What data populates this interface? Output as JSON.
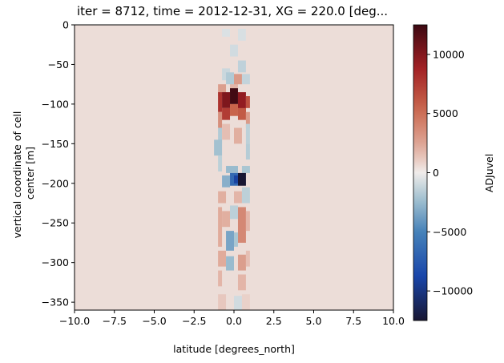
{
  "chart_data": {
    "type": "heatmap",
    "title": "iter = 8712, time = 2012-12-31, XG = 220.0 [deg...",
    "xlabel": "latitude [degrees_north]",
    "ylabel_lines": [
      "vertical coordinate of cell",
      "center [m]"
    ],
    "colorbar_label": "ADJuvel",
    "xlim": [
      -10.0,
      10.0
    ],
    "ylim": [
      -360,
      0
    ],
    "x_ticks": [
      "-10.0",
      "-7.5",
      "-5.0",
      "-2.5",
      "0.0",
      "2.5",
      "5.0",
      "7.5",
      "10.0"
    ],
    "y_ticks": [
      "0",
      "-50",
      "-100",
      "-150",
      "-200",
      "-250",
      "-300",
      "-350"
    ],
    "colorbar_range": [
      -12500,
      12500
    ],
    "colorbar_ticks": [
      "10000",
      "5000",
      "0",
      "-5000",
      "-10000"
    ],
    "colormap": "balance (navy-blue-white-red-dark red)",
    "background_value": 500,
    "cells": [
      {
        "x": [
          -0.75,
          -0.25
        ],
        "y": [
          -15,
          -5
        ],
        "v": -600
      },
      {
        "x": [
          0.25,
          0.75
        ],
        "y": [
          -20,
          -5
        ],
        "v": -700
      },
      {
        "x": [
          -0.25,
          0.25
        ],
        "y": [
          -40,
          -25
        ],
        "v": -900
      },
      {
        "x": [
          0.25,
          0.75
        ],
        "y": [
          -60,
          -45
        ],
        "v": -1400
      },
      {
        "x": [
          -0.75,
          -0.25
        ],
        "y": [
          -70,
          -55
        ],
        "v": -1100
      },
      {
        "x": [
          -0.25,
          0.25
        ],
        "y": [
          -80,
          -65
        ],
        "v": 1800
      },
      {
        "x": [
          -1.0,
          -0.5
        ],
        "y": [
          -90,
          -75
        ],
        "v": 2800
      },
      {
        "x": [
          -0.5,
          0.0
        ],
        "y": [
          -75,
          -60
        ],
        "v": -1800
      },
      {
        "x": [
          0.0,
          0.5
        ],
        "y": [
          -75,
          -62
        ],
        "v": 3000
      },
      {
        "x": [
          0.5,
          1.0
        ],
        "y": [
          -75,
          -62
        ],
        "v": -1300
      },
      {
        "x": [
          -1.0,
          -0.75
        ],
        "y": [
          -110,
          -85
        ],
        "v": 8000
      },
      {
        "x": [
          -0.75,
          -0.25
        ],
        "y": [
          -105,
          -85
        ],
        "v": 10200
      },
      {
        "x": [
          -0.25,
          0.25
        ],
        "y": [
          -100,
          -80
        ],
        "v": 12300
      },
      {
        "x": [
          0.25,
          0.75
        ],
        "y": [
          -110,
          -85
        ],
        "v": 9500
      },
      {
        "x": [
          0.75,
          1.0
        ],
        "y": [
          -105,
          -90
        ],
        "v": 6500
      },
      {
        "x": [
          -1.0,
          -0.75
        ],
        "y": [
          -130,
          -110
        ],
        "v": 3500
      },
      {
        "x": [
          -0.75,
          -0.25
        ],
        "y": [
          -120,
          -105
        ],
        "v": 7500
      },
      {
        "x": [
          -0.25,
          0.25
        ],
        "y": [
          -115,
          -100
        ],
        "v": 5500
      },
      {
        "x": [
          0.25,
          0.75
        ],
        "y": [
          -120,
          -105
        ],
        "v": 6000
      },
      {
        "x": [
          0.75,
          1.0
        ],
        "y": [
          -130,
          -110
        ],
        "v": 3000
      },
      {
        "x": [
          -1.0,
          -0.75
        ],
        "y": [
          -150,
          -130
        ],
        "v": -1800
      },
      {
        "x": [
          -0.75,
          -0.25
        ],
        "y": [
          -145,
          -125
        ],
        "v": 1500
      },
      {
        "x": [
          0.0,
          0.5
        ],
        "y": [
          -150,
          -130
        ],
        "v": 2000
      },
      {
        "x": [
          0.75,
          1.0
        ],
        "y": [
          -150,
          -125
        ],
        "v": -1500
      },
      {
        "x": [
          -1.25,
          -0.75
        ],
        "y": [
          -165,
          -145
        ],
        "v": -2200
      },
      {
        "x": [
          0.75,
          1.0
        ],
        "y": [
          -170,
          -150
        ],
        "v": -1700
      },
      {
        "x": [
          -1.0,
          -0.75
        ],
        "y": [
          -185,
          -165
        ],
        "v": -1500
      },
      {
        "x": [
          -0.5,
          0.25
        ],
        "y": [
          -187,
          -178
        ],
        "v": -2500
      },
      {
        "x": [
          0.5,
          1.0
        ],
        "y": [
          -187,
          -178
        ],
        "v": -2000
      },
      {
        "x": [
          -0.25,
          0.25
        ],
        "y": [
          -203,
          -187
        ],
        "v": -6500
      },
      {
        "x": [
          0.25,
          0.75
        ],
        "y": [
          -203,
          -187
        ],
        "v": -12500
      },
      {
        "x": [
          0.0,
          0.25
        ],
        "y": [
          -200,
          -190
        ],
        "v": -9000
      },
      {
        "x": [
          -0.75,
          -0.25
        ],
        "y": [
          -205,
          -190
        ],
        "v": -3000
      },
      {
        "x": [
          -1.0,
          -0.5
        ],
        "y": [
          -225,
          -210
        ],
        "v": 2000
      },
      {
        "x": [
          0.0,
          0.5
        ],
        "y": [
          -225,
          -210
        ],
        "v": 1800
      },
      {
        "x": [
          0.5,
          1.0
        ],
        "y": [
          -225,
          -205
        ],
        "v": -1500
      },
      {
        "x": [
          -1.0,
          -0.75
        ],
        "y": [
          -280,
          -230
        ],
        "v": 2200
      },
      {
        "x": [
          -0.75,
          -0.25
        ],
        "y": [
          -255,
          -235
        ],
        "v": 2000
      },
      {
        "x": [
          -0.25,
          0.25
        ],
        "y": [
          -245,
          -228
        ],
        "v": -1500
      },
      {
        "x": [
          0.25,
          0.75
        ],
        "y": [
          -275,
          -230
        ],
        "v": 3800
      },
      {
        "x": [
          0.75,
          1.0
        ],
        "y": [
          -260,
          -235
        ],
        "v": 1800
      },
      {
        "x": [
          -0.5,
          0.0
        ],
        "y": [
          -285,
          -260
        ],
        "v": -3500
      },
      {
        "x": [
          0.0,
          0.25
        ],
        "y": [
          -280,
          -262
        ],
        "v": -2000
      },
      {
        "x": [
          -1.0,
          -0.5
        ],
        "y": [
          -305,
          -285
        ],
        "v": 2200
      },
      {
        "x": [
          -0.5,
          0.0
        ],
        "y": [
          -310,
          -292
        ],
        "v": -2500
      },
      {
        "x": [
          0.25,
          0.75
        ],
        "y": [
          -310,
          -290
        ],
        "v": 2800
      },
      {
        "x": [
          0.75,
          1.0
        ],
        "y": [
          -305,
          -285
        ],
        "v": 1500
      },
      {
        "x": [
          -1.0,
          -0.75
        ],
        "y": [
          -330,
          -310
        ],
        "v": 1800
      },
      {
        "x": [
          0.25,
          0.75
        ],
        "y": [
          -335,
          -315
        ],
        "v": 1800
      },
      {
        "x": [
          -1.0,
          -0.5
        ],
        "y": [
          -360,
          -340
        ],
        "v": 1200
      },
      {
        "x": [
          0.0,
          0.5
        ],
        "y": [
          -360,
          -342
        ],
        "v": -900
      },
      {
        "x": [
          0.5,
          1.0
        ],
        "y": [
          -360,
          -340
        ],
        "v": 900
      }
    ]
  }
}
